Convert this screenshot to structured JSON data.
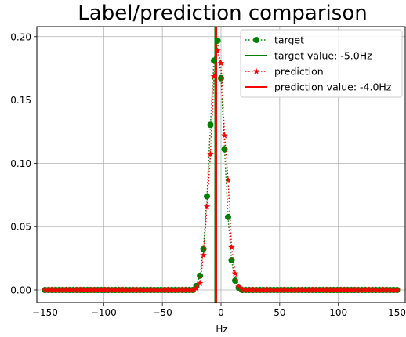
{
  "chart_data": {
    "type": "line",
    "title": "Label/prediction comparison",
    "xlabel": "Hz",
    "ylabel": "",
    "xlim": [
      -157,
      157
    ],
    "ylim": [
      -0.0099,
      0.2079
    ],
    "grid": true,
    "legend_position": "top-right",
    "x_ticks": [
      -150,
      -100,
      -50,
      0,
      50,
      100,
      150
    ],
    "x_tick_labels": [
      "−150",
      "−100",
      "−50",
      "0",
      "50",
      "100",
      "150"
    ],
    "y_ticks": [
      0.0,
      0.05,
      0.1,
      0.15,
      0.2
    ],
    "y_tick_labels": [
      "0.00",
      "0.05",
      "0.10",
      "0.15",
      "0.20"
    ],
    "x": [
      -150,
      -147,
      -144,
      -141,
      -138,
      -135,
      -132,
      -129,
      -126,
      -123,
      -120,
      -117,
      -114,
      -111,
      -108,
      -105,
      -102,
      -99,
      -96,
      -93,
      -90,
      -87,
      -84,
      -81,
      -78,
      -75,
      -72,
      -69,
      -66,
      -63,
      -60,
      -57,
      -54,
      -51,
      -48,
      -45,
      -42,
      -39,
      -36,
      -33,
      -30,
      -27,
      -24,
      -21,
      -18,
      -15,
      -12,
      -9,
      -6,
      -3,
      0,
      3,
      6,
      9,
      12,
      15,
      18,
      21,
      24,
      27,
      30,
      33,
      36,
      39,
      42,
      45,
      48,
      51,
      54,
      57,
      60,
      63,
      66,
      69,
      72,
      75,
      78,
      81,
      84,
      87,
      90,
      93,
      96,
      99,
      102,
      105,
      108,
      111,
      114,
      117,
      120,
      123,
      126,
      129,
      132,
      135,
      138,
      141,
      144,
      147,
      150
    ],
    "series": [
      {
        "name": "target",
        "color": "#008000",
        "linestyle": "dotted",
        "marker": "circle",
        "values": [
          0,
          0,
          0,
          0,
          0,
          0,
          0,
          0,
          0,
          0,
          0,
          0,
          0,
          0,
          0,
          0,
          0,
          0,
          0,
          0,
          0,
          0,
          0,
          0,
          0,
          0,
          0,
          0,
          0,
          0,
          0,
          0,
          0,
          0,
          0,
          0,
          0,
          0,
          0,
          0,
          0,
          0,
          0,
          0.0032,
          0.0112,
          0.0324,
          0.0739,
          0.1304,
          0.1811,
          0.1968,
          0.1672,
          0.111,
          0.0576,
          0.0235,
          0.0074,
          0.0018,
          0,
          0,
          0,
          0,
          0,
          0,
          0,
          0,
          0,
          0,
          0,
          0,
          0,
          0,
          0,
          0,
          0,
          0,
          0,
          0,
          0,
          0,
          0,
          0,
          0,
          0,
          0,
          0,
          0,
          0,
          0,
          0,
          0,
          0,
          0,
          0,
          0,
          0,
          0,
          0,
          0,
          0,
          0,
          0,
          0
        ]
      },
      {
        "name": "prediction",
        "color": "#ff0000",
        "linestyle": "dotted",
        "marker": "star",
        "values": [
          0,
          0,
          0,
          0,
          0,
          0,
          0,
          0,
          0,
          0,
          0,
          0,
          0,
          0,
          0,
          0,
          0,
          0,
          0,
          0,
          0,
          0,
          0,
          0,
          0,
          0,
          0,
          0,
          0,
          0,
          0,
          0,
          0,
          0,
          0,
          0,
          0,
          0,
          0,
          0,
          0,
          0,
          0,
          0.0012,
          0.0053,
          0.0274,
          0.0658,
          0.1074,
          0.1686,
          0.1889,
          0.179,
          0.1219,
          0.0869,
          0.0338,
          0.013,
          0.0025,
          0.0005,
          0,
          0,
          0,
          0,
          0,
          0,
          0,
          0,
          0,
          0,
          0,
          0,
          0,
          0,
          0,
          0,
          0,
          0,
          0,
          0,
          0,
          0,
          0,
          0,
          0,
          0,
          0,
          0,
          0,
          0,
          0,
          0,
          0,
          0,
          0,
          0,
          0,
          0,
          0,
          0,
          0,
          0,
          0,
          0
        ]
      }
    ],
    "vlines": [
      {
        "name": "target value: -5.0Hz",
        "x": -5.0,
        "color": "#008000"
      },
      {
        "name": "prediction value: -4.0Hz",
        "x": -4.0,
        "color": "#ff0000"
      }
    ],
    "legend": [
      {
        "label": "target",
        "kind": "marker-line",
        "color": "#008000",
        "marker": "circle"
      },
      {
        "label": "target value: -5.0Hz",
        "kind": "line",
        "color": "#008000"
      },
      {
        "label": "prediction",
        "kind": "marker-line",
        "color": "#ff0000",
        "marker": "star"
      },
      {
        "label": "prediction value: -4.0Hz",
        "kind": "line",
        "color": "#ff0000"
      }
    ]
  }
}
